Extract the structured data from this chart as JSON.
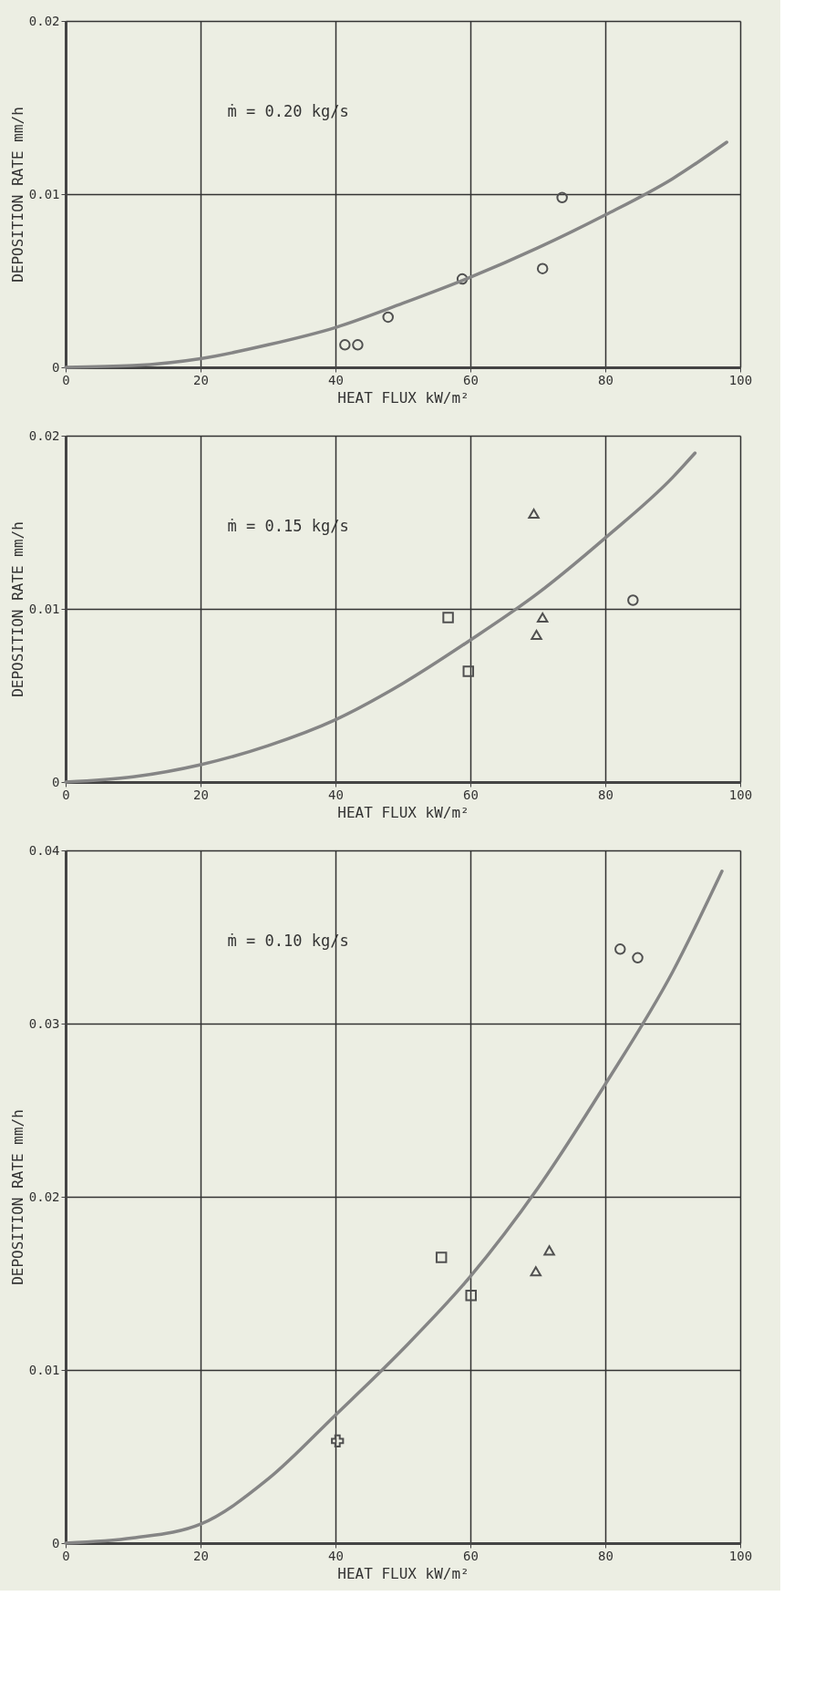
{
  "chart_data": [
    {
      "type": "scatter",
      "xlabel": "HEAT FLUX kW/m²",
      "ylabel": "DEPOSITION RATE mm/h",
      "annotations": [
        "ṁ = 0.20 kg/s"
      ],
      "xlim": [
        0,
        100
      ],
      "ylim": [
        0,
        0.02
      ],
      "xticks": [
        0,
        20,
        40,
        60,
        80,
        100
      ],
      "yticks": [
        0,
        0.01,
        0.02
      ],
      "grid": true,
      "series": [
        {
          "type": "scatter",
          "marker": "circle",
          "color": "#505050",
          "x": [
            41.4,
            43.3,
            47.8,
            58.8,
            70.7,
            73.6
          ],
          "values": [
            0.0013,
            0.0013,
            0.0029,
            0.0051,
            0.0057,
            0.0098
          ]
        },
        {
          "type": "line",
          "color": "#858585",
          "x": [
            0,
            10,
            20,
            30,
            40,
            50,
            60,
            70,
            80,
            90,
            98
          ],
          "values": [
            0,
            0.0001,
            0.0005,
            0.0013,
            0.0023,
            0.0037,
            0.0052,
            0.0069,
            0.0088,
            0.0109,
            0.013
          ]
        }
      ]
    },
    {
      "type": "scatter",
      "xlabel": "HEAT FLUX kW/m²",
      "ylabel": "DEPOSITION RATE mm/h",
      "annotations": [
        "ṁ = 0.15 kg/s"
      ],
      "xlim": [
        0,
        100
      ],
      "ylim": [
        0,
        0.02
      ],
      "xticks": [
        0,
        20,
        40,
        60,
        80,
        100
      ],
      "yticks": [
        0,
        0.01,
        0.02
      ],
      "grid": true,
      "series": [
        {
          "type": "scatter",
          "marker": "square",
          "color": "#505050",
          "x": [
            56.7,
            59.7
          ],
          "values": [
            0.0095,
            0.0064
          ]
        },
        {
          "type": "scatter",
          "marker": "triangle",
          "color": "#505050",
          "x": [
            69.4,
            70.7,
            69.8
          ],
          "values": [
            0.0155,
            0.0095,
            0.0085
          ]
        },
        {
          "type": "scatter",
          "marker": "circle",
          "color": "#505050",
          "x": [
            84.1
          ],
          "values": [
            0.0105
          ]
        },
        {
          "type": "line",
          "color": "#858585",
          "x": [
            0,
            10,
            20,
            30,
            40,
            50,
            60,
            70,
            80,
            90,
            93.3
          ],
          "values": [
            0,
            0.0003,
            0.001,
            0.0021,
            0.0036,
            0.0057,
            0.0082,
            0.0109,
            0.0141,
            0.0176,
            0.019
          ]
        }
      ]
    },
    {
      "type": "scatter",
      "xlabel": "HEAT FLUX kW/m²",
      "ylabel": "DEPOSITION RATE mm/h",
      "annotations": [
        "ṁ = 0.10 kg/s"
      ],
      "xlim": [
        0,
        100
      ],
      "ylim": [
        0,
        0.04
      ],
      "xticks": [
        0,
        20,
        40,
        60,
        80,
        100
      ],
      "yticks": [
        0,
        0.01,
        0.02,
        0.03,
        0.04
      ],
      "grid": true,
      "series": [
        {
          "type": "scatter",
          "marker": "circle",
          "color": "#505050",
          "x": [
            82.2,
            84.8
          ],
          "values": [
            0.0343,
            0.0338
          ]
        },
        {
          "type": "scatter",
          "marker": "square",
          "color": "#505050",
          "x": [
            55.7,
            60.1
          ],
          "values": [
            0.0165,
            0.0143
          ]
        },
        {
          "type": "scatter",
          "marker": "triangle",
          "color": "#505050",
          "x": [
            71.7,
            69.7
          ],
          "values": [
            0.0169,
            0.0157
          ]
        },
        {
          "type": "scatter",
          "marker": "cross",
          "color": "#505050",
          "x": [
            40.3
          ],
          "values": [
            0.0059
          ]
        },
        {
          "type": "line",
          "color": "#858585",
          "x": [
            0,
            10,
            20,
            30,
            40,
            50,
            60,
            70,
            80,
            90,
            97.3
          ],
          "values": [
            0,
            0.0003,
            0.0011,
            0.0037,
            0.0074,
            0.0112,
            0.0154,
            0.0205,
            0.0265,
            0.033,
            0.0388
          ]
        }
      ]
    }
  ]
}
